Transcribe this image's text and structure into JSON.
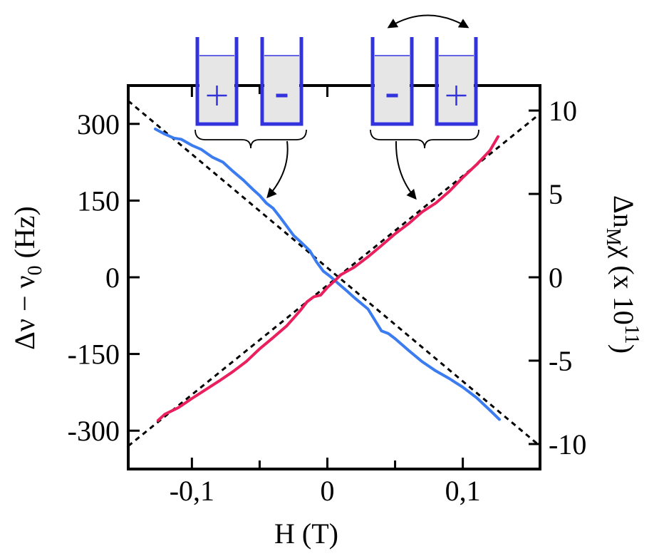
{
  "colors": {
    "blue_trace": "#3b7cf0",
    "red_trace": "#ea1f5e",
    "cell_stroke": "#3333dd",
    "cell_fill": "#e6e6e6",
    "axes": "#000000"
  },
  "chart_data": {
    "type": "line",
    "title": "",
    "xlabel": "H (T)",
    "ylabel": "Δν − ν0 (Hz)",
    "ylabel_parts": {
      "main": "Δν − ν",
      "sub": "0",
      "unit": " (Hz)"
    },
    "y2label": "Δn_Mχ  (x 10^11)",
    "y2label_parts": {
      "main": "Δn",
      "sub": "M",
      "chi": "χ",
      "mid": "  (x 10",
      "sup": "11",
      "end": ")"
    },
    "xlim": [
      -0.147,
      0.157
    ],
    "ylim": [
      -375,
      375
    ],
    "y2lim": [
      -11.5,
      11.5
    ],
    "x_ticks": [
      -0.1,
      0,
      0.1
    ],
    "x_tick_labels": [
      "-0,1",
      "0",
      "0,1"
    ],
    "x_minor_ticks": [
      -0.05,
      0.05
    ],
    "y_ticks": [
      300,
      150,
      0,
      -150,
      -300
    ],
    "y_tick_labels": [
      "300",
      "150",
      "0",
      "-150",
      "-300"
    ],
    "y2_ticks": [
      10,
      5,
      0,
      -5,
      -10
    ],
    "y2_tick_labels": [
      "10",
      "5",
      "0",
      "-5",
      "-10"
    ],
    "grid": false,
    "series": [
      {
        "color": "#3b7cf0",
        "x": [
          -0.127,
          -0.12,
          -0.113,
          -0.108,
          -0.1,
          -0.093,
          -0.085,
          -0.077,
          -0.07,
          -0.062,
          -0.055,
          -0.05,
          -0.045,
          -0.04,
          -0.035,
          -0.03,
          -0.025,
          -0.02,
          -0.013,
          -0.008,
          -0.003,
          0.002,
          0.008,
          0.015,
          0.02,
          0.03,
          0.04,
          0.045,
          0.05,
          0.06,
          0.07,
          0.08,
          0.09,
          0.1,
          0.11,
          0.12,
          0.127
        ],
        "y": [
          290,
          280,
          272,
          270,
          258,
          250,
          235,
          225,
          208,
          190,
          172,
          160,
          145,
          135,
          118,
          100,
          82,
          70,
          52,
          30,
          12,
          2,
          -12,
          -28,
          -40,
          -62,
          -105,
          -110,
          -120,
          -143,
          -165,
          -183,
          -198,
          -215,
          -235,
          -260,
          -278
        ]
      },
      {
        "color": "#ea1f5e",
        "x": [
          -0.125,
          -0.12,
          -0.11,
          -0.1,
          -0.09,
          -0.08,
          -0.07,
          -0.06,
          -0.05,
          -0.04,
          -0.03,
          -0.025,
          -0.02,
          -0.015,
          -0.01,
          -0.005,
          0,
          0.005,
          0.01,
          0.02,
          0.03,
          0.04,
          0.05,
          0.06,
          0.07,
          0.08,
          0.09,
          0.1,
          0.11,
          0.12,
          0.126
        ],
        "y": [
          -280,
          -268,
          -255,
          -237,
          -220,
          -203,
          -185,
          -165,
          -140,
          -118,
          -95,
          -80,
          -65,
          -48,
          -38,
          -35,
          -20,
          -8,
          5,
          20,
          40,
          62,
          85,
          105,
          128,
          145,
          168,
          195,
          220,
          248,
          275
        ]
      }
    ],
    "reference_lines": [
      {
        "style": "dashed",
        "color": "#000000",
        "x": [
          -0.147,
          0.157
        ],
        "y": [
          345,
          -330
        ]
      },
      {
        "style": "dashed",
        "color": "#000000",
        "x": [
          -0.147,
          0.157
        ],
        "y": [
          -330,
          320
        ]
      }
    ],
    "annotations": {
      "cells": [
        {
          "group": "left",
          "sign": "+"
        },
        {
          "group": "left",
          "sign": "-"
        },
        {
          "group": "right",
          "sign": "-"
        },
        {
          "group": "right",
          "sign": "+"
        }
      ],
      "swap_arrow": "double-headed",
      "brace_arrows": [
        "left-group-to-blue",
        "right-group-to-red"
      ]
    }
  }
}
